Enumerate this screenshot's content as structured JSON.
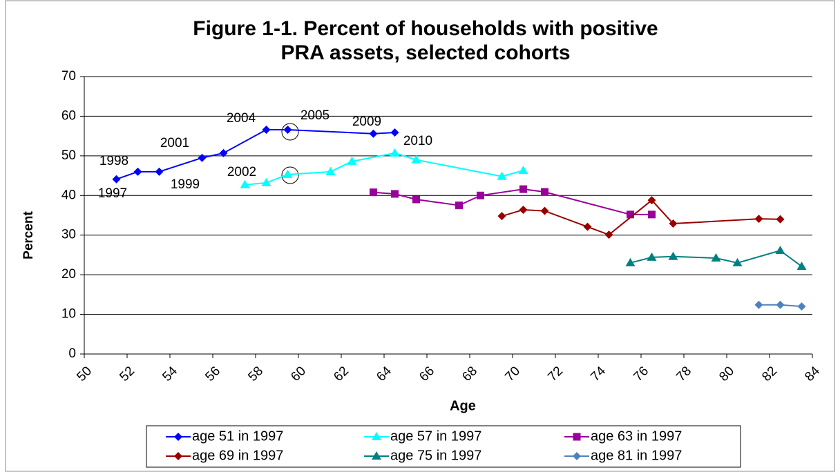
{
  "chart_data": {
    "type": "line",
    "title": [
      "Figure 1-1. Percent of households with positive",
      "PRA assets, selected cohorts"
    ],
    "xlabel": "Age",
    "ylabel": "Percent",
    "xlim": [
      50,
      84
    ],
    "xticks": [
      50,
      52,
      54,
      56,
      58,
      60,
      62,
      64,
      66,
      68,
      70,
      72,
      74,
      76,
      78,
      80,
      82,
      84
    ],
    "ylim": [
      0,
      70
    ],
    "yticks": [
      0,
      10,
      20,
      30,
      40,
      50,
      60,
      70
    ],
    "grid": true,
    "legend": "bottom",
    "series": [
      {
        "name": "age 51 in 1997",
        "color": "#0000ff",
        "marker": "diamond",
        "x": [
          51.5,
          52.5,
          53.5,
          55.5,
          56.5,
          58.5,
          59.5,
          63.5,
          64.5
        ],
        "values": [
          44.1,
          46,
          46,
          49.5,
          50.7,
          56.6,
          56.6,
          55.6,
          55.9
        ]
      },
      {
        "name": "age 57 in 1997",
        "color": "#00ffff",
        "marker": "triangle",
        "x": [
          57.5,
          58.5,
          59.5,
          61.5,
          62.5,
          64.5,
          65.5,
          69.5,
          70.5
        ],
        "values": [
          42.7,
          43.2,
          45.3,
          46,
          48.6,
          50.7,
          49,
          44.8,
          46.3
        ]
      },
      {
        "name": "age 63 in 1997",
        "color": "#990099",
        "marker": "square",
        "x": [
          63.5,
          64.5,
          65.5,
          67.5,
          68.5,
          70.5,
          71.5,
          75.5,
          76.5
        ],
        "values": [
          40.8,
          40.4,
          39,
          37.5,
          40,
          41.6,
          40.9,
          35.2,
          35.2
        ]
      },
      {
        "name": "age 69 in 1997",
        "color": "#990000",
        "marker": "diamond",
        "x": [
          69.5,
          70.5,
          71.5,
          73.5,
          74.5,
          76.5,
          77.5,
          81.5,
          82.5
        ],
        "values": [
          34.8,
          36.4,
          36.1,
          32.1,
          30.1,
          38.8,
          32.9,
          34.1,
          34
        ]
      },
      {
        "name": "age 75 in 1997",
        "color": "#008080",
        "marker": "triangle",
        "x": [
          75.5,
          76.5,
          77.5,
          79.5,
          80.5,
          82.5,
          83.5
        ],
        "values": [
          23,
          24.4,
          24.6,
          24.2,
          23,
          26.1,
          22.1
        ]
      },
      {
        "name": "age 81 in 1997",
        "color": "#4f81bd",
        "marker": "diamond",
        "x": [
          81.5,
          82.5,
          83.5
        ],
        "values": [
          12.4,
          12.4,
          12
        ]
      }
    ],
    "annotations": [
      "1997",
      "1998",
      "1999",
      "2001",
      "2002",
      "2004",
      "2005",
      "2009",
      "2010"
    ]
  }
}
